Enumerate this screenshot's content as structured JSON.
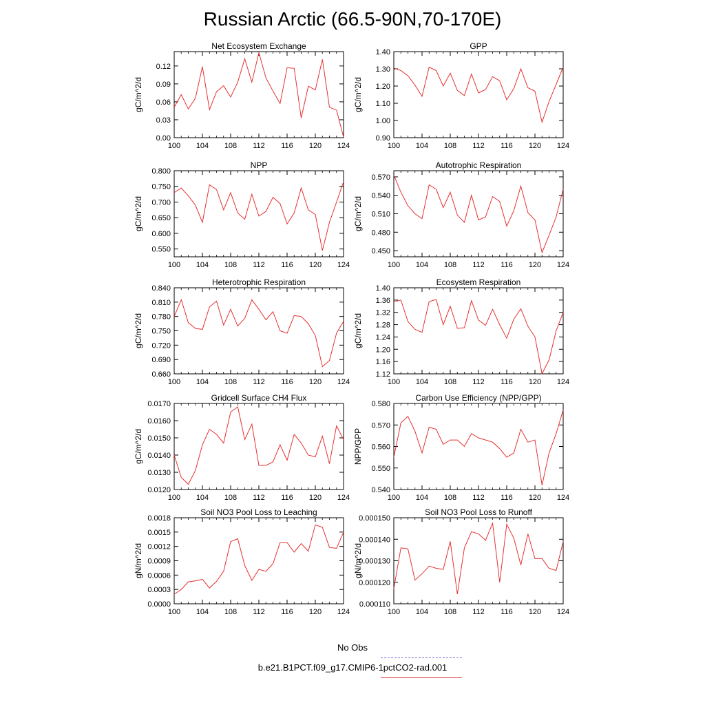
{
  "title": "Russian Arctic (66.5-90N,70-170E)",
  "legend": {
    "obs_label": "No Obs",
    "model_label": "b.e21.B1PCT.f09_g17.CMIP6-1pctCO2-rad.001",
    "obs_color": "#6a6ad8",
    "model_color": "#e63030"
  },
  "chart_data": [
    {
      "type": "line",
      "title": "Net Ecosystem Exchange",
      "ylabel": "gC/m^2/d",
      "xlim": [
        100,
        124
      ],
      "ylim": [
        0,
        0.144
      ],
      "yticks": [
        "0.00",
        "0.03",
        "0.06",
        "0.09",
        "0.12"
      ],
      "xticks": [
        100,
        104,
        108,
        112,
        116,
        120,
        124
      ],
      "x": [
        100,
        101,
        102,
        103,
        104,
        105,
        106,
        107,
        108,
        109,
        110,
        111,
        112,
        113,
        114,
        115,
        116,
        117,
        118,
        119,
        120,
        121,
        122,
        123,
        124
      ],
      "values": [
        0.051,
        0.072,
        0.048,
        0.066,
        0.119,
        0.047,
        0.077,
        0.087,
        0.068,
        0.093,
        0.132,
        0.093,
        0.142,
        0.1,
        0.078,
        0.057,
        0.117,
        0.116,
        0.033,
        0.086,
        0.08,
        0.131,
        0.051,
        0.046,
        0.001
      ]
    },
    {
      "type": "line",
      "title": "GPP",
      "ylabel": "gC/m^2/d",
      "xlim": [
        100,
        124
      ],
      "ylim": [
        0.9,
        1.4
      ],
      "yticks": [
        "0.90",
        "1.00",
        "1.10",
        "1.20",
        "1.30",
        "1.40"
      ],
      "xticks": [
        100,
        104,
        108,
        112,
        116,
        120,
        124
      ],
      "x": [
        100,
        101,
        102,
        103,
        104,
        105,
        106,
        107,
        108,
        109,
        110,
        111,
        112,
        113,
        114,
        115,
        116,
        117,
        118,
        119,
        120,
        121,
        122,
        123,
        124
      ],
      "values": [
        1.305,
        1.29,
        1.26,
        1.205,
        1.14,
        1.31,
        1.29,
        1.2,
        1.275,
        1.175,
        1.145,
        1.27,
        1.16,
        1.18,
        1.255,
        1.23,
        1.12,
        1.185,
        1.3,
        1.19,
        1.17,
        0.99,
        1.11,
        1.21,
        1.31
      ]
    },
    {
      "type": "line",
      "title": "NPP",
      "ylabel": "gC/m^2/d",
      "xlim": [
        100,
        124
      ],
      "ylim": [
        0.525,
        0.8
      ],
      "yticks": [
        "0.550",
        "0.600",
        "0.650",
        "0.700",
        "0.750",
        "0.800"
      ],
      "xticks": [
        100,
        104,
        108,
        112,
        116,
        120,
        124
      ],
      "x": [
        100,
        101,
        102,
        103,
        104,
        105,
        106,
        107,
        108,
        109,
        110,
        111,
        112,
        113,
        114,
        115,
        116,
        117,
        118,
        119,
        120,
        121,
        122,
        123,
        124
      ],
      "values": [
        0.73,
        0.745,
        0.72,
        0.69,
        0.635,
        0.755,
        0.74,
        0.675,
        0.73,
        0.665,
        0.645,
        0.725,
        0.655,
        0.67,
        0.715,
        0.695,
        0.63,
        0.665,
        0.745,
        0.675,
        0.66,
        0.545,
        0.635,
        0.7,
        0.765
      ]
    },
    {
      "type": "line",
      "title": "Autotrophic Respiration",
      "ylabel": "gC/m^2/d",
      "xlim": [
        100,
        124
      ],
      "ylim": [
        0.44,
        0.58
      ],
      "yticks": [
        "0.450",
        "0.480",
        "0.510",
        "0.540",
        "0.570"
      ],
      "xticks": [
        100,
        104,
        108,
        112,
        116,
        120,
        124
      ],
      "x": [
        100,
        101,
        102,
        103,
        104,
        105,
        106,
        107,
        108,
        109,
        110,
        111,
        112,
        113,
        114,
        115,
        116,
        117,
        118,
        119,
        120,
        121,
        122,
        123,
        124
      ],
      "values": [
        0.573,
        0.545,
        0.523,
        0.51,
        0.502,
        0.557,
        0.55,
        0.52,
        0.545,
        0.508,
        0.496,
        0.54,
        0.5,
        0.505,
        0.538,
        0.53,
        0.49,
        0.515,
        0.555,
        0.512,
        0.5,
        0.447,
        0.475,
        0.505,
        0.55
      ]
    },
    {
      "type": "line",
      "title": "Heterotrophic Respiration",
      "ylabel": "gC/m^2/d",
      "xlim": [
        100,
        124
      ],
      "ylim": [
        0.66,
        0.84
      ],
      "yticks": [
        "0.660",
        "0.690",
        "0.720",
        "0.750",
        "0.780",
        "0.810",
        "0.840"
      ],
      "xticks": [
        100,
        104,
        108,
        112,
        116,
        120,
        124
      ],
      "x": [
        100,
        101,
        102,
        103,
        104,
        105,
        106,
        107,
        108,
        109,
        110,
        111,
        112,
        113,
        114,
        115,
        116,
        117,
        118,
        119,
        120,
        121,
        122,
        123,
        124
      ],
      "values": [
        0.78,
        0.815,
        0.767,
        0.755,
        0.753,
        0.8,
        0.812,
        0.762,
        0.795,
        0.76,
        0.776,
        0.815,
        0.795,
        0.773,
        0.79,
        0.75,
        0.745,
        0.782,
        0.78,
        0.765,
        0.74,
        0.675,
        0.688,
        0.745,
        0.77
      ]
    },
    {
      "type": "line",
      "title": "Ecosystem Respiration",
      "ylabel": "gC/m^2/d",
      "xlim": [
        100,
        124
      ],
      "ylim": [
        1.12,
        1.4
      ],
      "yticks": [
        "1.12",
        "1.16",
        "1.20",
        "1.24",
        "1.28",
        "1.32",
        "1.36",
        "1.40"
      ],
      "xticks": [
        100,
        104,
        108,
        112,
        116,
        120,
        124
      ],
      "x": [
        100,
        101,
        102,
        103,
        104,
        105,
        106,
        107,
        108,
        109,
        110,
        111,
        112,
        113,
        114,
        115,
        116,
        117,
        118,
        119,
        120,
        121,
        122,
        123,
        124
      ],
      "values": [
        1.355,
        1.36,
        1.29,
        1.265,
        1.255,
        1.355,
        1.362,
        1.28,
        1.34,
        1.268,
        1.27,
        1.358,
        1.295,
        1.278,
        1.33,
        1.28,
        1.236,
        1.298,
        1.332,
        1.275,
        1.24,
        1.12,
        1.165,
        1.26,
        1.32
      ]
    },
    {
      "type": "line",
      "title": "Gridcell Surface CH4 Flux",
      "ylabel": "gC/m^2/d",
      "xlim": [
        100,
        124
      ],
      "ylim": [
        0.012,
        0.017
      ],
      "yticks": [
        "0.0120",
        "0.0130",
        "0.0140",
        "0.0150",
        "0.0160",
        "0.0170"
      ],
      "xticks": [
        100,
        104,
        108,
        112,
        116,
        120,
        124
      ],
      "x": [
        100,
        101,
        102,
        103,
        104,
        105,
        106,
        107,
        108,
        109,
        110,
        111,
        112,
        113,
        114,
        115,
        116,
        117,
        118,
        119,
        120,
        121,
        122,
        123,
        124
      ],
      "values": [
        0.014,
        0.0127,
        0.0123,
        0.0131,
        0.0146,
        0.0155,
        0.0152,
        0.0147,
        0.0165,
        0.0168,
        0.0149,
        0.0158,
        0.0134,
        0.0134,
        0.0136,
        0.0146,
        0.0137,
        0.0152,
        0.0147,
        0.014,
        0.0139,
        0.0151,
        0.0135,
        0.0157,
        0.0149
      ]
    },
    {
      "type": "line",
      "title": "Carbon Use Efficiency (NPP/GPP)",
      "ylabel": "NPP/GPP",
      "xlim": [
        100,
        124
      ],
      "ylim": [
        0.54,
        0.58
      ],
      "yticks": [
        "0.540",
        "0.550",
        "0.560",
        "0.570",
        "0.580"
      ],
      "xticks": [
        100,
        104,
        108,
        112,
        116,
        120,
        124
      ],
      "x": [
        100,
        101,
        102,
        103,
        104,
        105,
        106,
        107,
        108,
        109,
        110,
        111,
        112,
        113,
        114,
        115,
        116,
        117,
        118,
        119,
        120,
        121,
        122,
        123,
        124
      ],
      "values": [
        0.555,
        0.571,
        0.574,
        0.567,
        0.557,
        0.569,
        0.568,
        0.561,
        0.563,
        0.563,
        0.56,
        0.566,
        0.564,
        0.563,
        0.562,
        0.559,
        0.555,
        0.557,
        0.568,
        0.562,
        0.563,
        0.542,
        0.557,
        0.566,
        0.577
      ]
    },
    {
      "type": "line",
      "title": "Soil NO3 Pool Loss to Leaching",
      "ylabel": "gN/m^2/d",
      "xlim": [
        100,
        124
      ],
      "ylim": [
        0,
        0.0018
      ],
      "yticks": [
        "0.0000",
        "0.0003",
        "0.0006",
        "0.0009",
        "0.0012",
        "0.0015",
        "0.0018"
      ],
      "xticks": [
        100,
        104,
        108,
        112,
        116,
        120,
        124
      ],
      "x": [
        100,
        101,
        102,
        103,
        104,
        105,
        106,
        107,
        108,
        109,
        110,
        111,
        112,
        113,
        114,
        115,
        116,
        117,
        118,
        119,
        120,
        121,
        122,
        123,
        124
      ],
      "values": [
        0.0002,
        0.0003,
        0.00046,
        0.00048,
        0.00051,
        0.00033,
        0.00047,
        0.00068,
        0.0013,
        0.00136,
        0.0008,
        0.00049,
        0.00072,
        0.00068,
        0.00084,
        0.00128,
        0.00128,
        0.00108,
        0.00126,
        0.0011,
        0.00165,
        0.0016,
        0.00118,
        0.00116,
        0.0015
      ]
    },
    {
      "type": "line",
      "title": "Soil NO3 Pool Loss to Runoff",
      "ylabel": "gN/m^2/d",
      "xlim": [
        100,
        124
      ],
      "ylim": [
        0.00011,
        0.00015
      ],
      "yticks": [
        "0.000110",
        "0.000120",
        "0.000130",
        "0.000140",
        "0.000150"
      ],
      "xticks": [
        100,
        104,
        108,
        112,
        116,
        120,
        124
      ],
      "x": [
        100,
        101,
        102,
        103,
        104,
        105,
        106,
        107,
        108,
        109,
        110,
        111,
        112,
        113,
        114,
        115,
        116,
        117,
        118,
        119,
        120,
        121,
        122,
        123,
        124
      ],
      "values": [
        0.000117,
        0.000136,
        0.0001355,
        0.000121,
        0.000124,
        0.0001275,
        0.0001265,
        0.000126,
        0.000139,
        0.0001145,
        0.000136,
        0.0001435,
        0.0001425,
        0.0001395,
        0.0001475,
        0.00012,
        0.000147,
        0.0001405,
        0.000128,
        0.0001425,
        0.000131,
        0.000131,
        0.0001265,
        0.0001255,
        0.000139
      ]
    }
  ]
}
